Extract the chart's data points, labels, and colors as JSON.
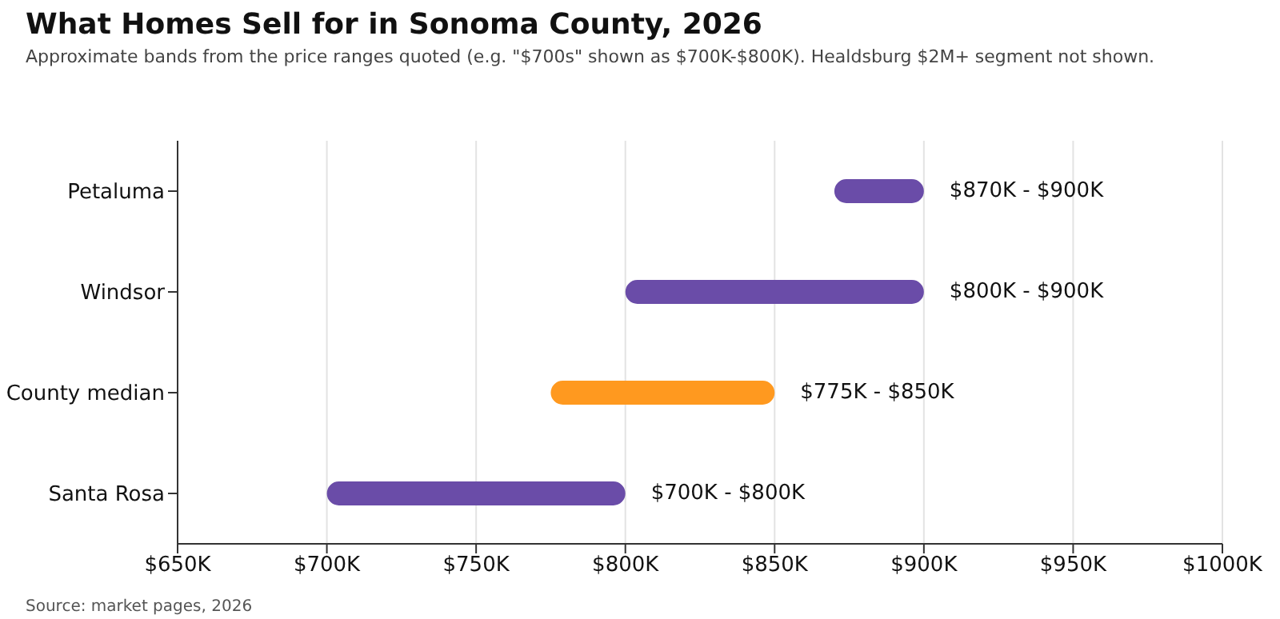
{
  "chart_data": {
    "type": "bar",
    "orientation": "horizontal",
    "title": "What Homes Sell for in Sonoma County, 2026",
    "subtitle": "Approximate bands from the price ranges quoted (e.g. \"$700s\" shown as $700K-$800K). Healdsburg $2M+ segment not shown.",
    "categories": [
      "Petaluma",
      "Windsor",
      "County median",
      "Santa Rosa"
    ],
    "base": [
      870,
      800,
      775,
      700
    ],
    "values": [
      30,
      100,
      75,
      100
    ],
    "colors": [
      "#6a4ca8",
      "#6a4ca8",
      "#ff991f",
      "#6a4ca8"
    ],
    "xlim": [
      650,
      1000
    ],
    "xticks": [
      {
        "value": 650,
        "label": "$650K"
      },
      {
        "value": 700,
        "label": "$700K"
      },
      {
        "value": 750,
        "label": "$750K"
      },
      {
        "value": 800,
        "label": "$800K"
      },
      {
        "value": 850,
        "label": "$850K"
      },
      {
        "value": 900,
        "label": "$900K"
      },
      {
        "value": 950,
        "label": "$950K"
      },
      {
        "value": 1000,
        "label": "$1000K"
      }
    ],
    "grid": "x",
    "legend": false,
    "annotations": [
      {
        "text": "$870K - $900K",
        "x": 900,
        "y": "Petaluma"
      },
      {
        "text": "$800K - $900K",
        "x": 900,
        "y": "Windsor"
      },
      {
        "text": "$775K - $850K",
        "x": 850,
        "y": "County median"
      },
      {
        "text": "$700K - $800K",
        "x": 800,
        "y": "Santa Rosa"
      },
      "Source: market pages, 2026"
    ]
  }
}
